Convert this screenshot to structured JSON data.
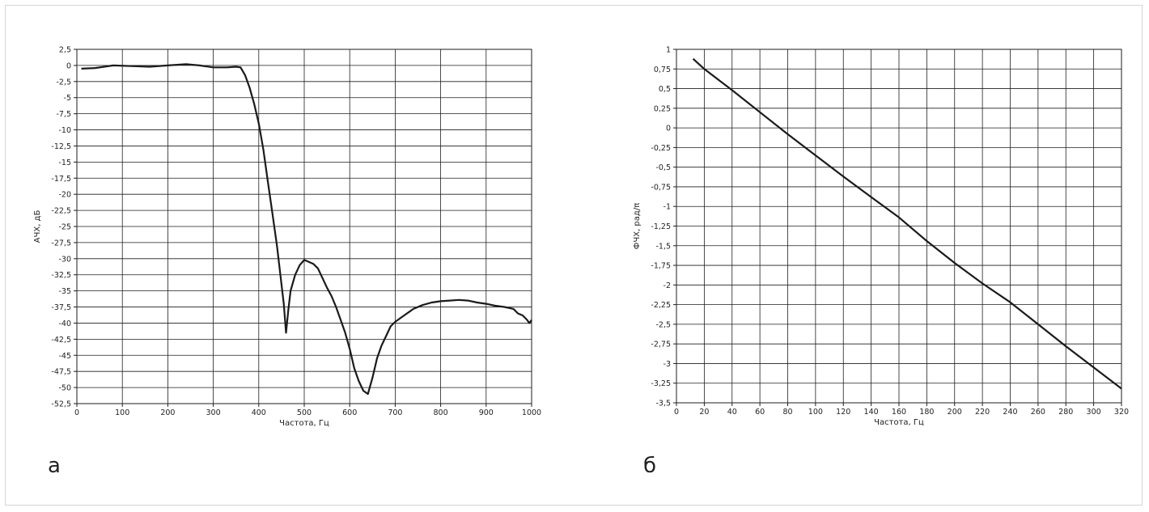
{
  "panels": [
    {
      "label": "а"
    },
    {
      "label": "б"
    }
  ],
  "chart_data": [
    {
      "type": "line",
      "title": "",
      "xlabel": "Частота, Гц",
      "ylabel": "АЧХ, дБ",
      "xlim": [
        0,
        1000
      ],
      "ylim": [
        -52.5,
        2.5
      ],
      "x_ticks": [
        0,
        100,
        200,
        300,
        400,
        500,
        600,
        700,
        800,
        900,
        1000
      ],
      "x_tick_labels": [
        "0",
        "100",
        "200",
        "300",
        "400",
        "500",
        "600",
        "700",
        "800",
        "900",
        "1000"
      ],
      "y_ticks": [
        2.5,
        0,
        -2.5,
        -5,
        -7.5,
        -10,
        -12.5,
        -15,
        -17.5,
        -20,
        -22.5,
        -25,
        -27.5,
        -30,
        -32.5,
        -35,
        -37.5,
        -40,
        -42.5,
        -45,
        -47.5,
        -50,
        -52.5
      ],
      "y_tick_labels": [
        "2,5",
        "0",
        "-2,5",
        "-5",
        "-7,5",
        "-10",
        "-12,5",
        "-15",
        "-17,5",
        "-20",
        "-22,5",
        "-25",
        "-27,5",
        "-30",
        "-32,5",
        "-35",
        "-37,5",
        "-40",
        "-42,5",
        "-45",
        "-47,5",
        "-50",
        "-52,5"
      ],
      "grid": true,
      "line_color": "#1a1a1a",
      "series": [
        {
          "x": [
            10,
            40,
            80,
            120,
            160,
            200,
            240,
            270,
            300,
            330,
            350,
            360,
            370,
            380,
            390,
            400,
            410,
            420,
            430,
            440,
            450,
            455,
            460,
            465,
            470,
            480,
            490,
            500,
            510,
            520,
            530,
            540,
            550,
            560,
            570,
            580,
            590,
            600,
            610,
            620,
            630,
            640,
            650,
            660,
            670,
            680,
            690,
            700,
            720,
            740,
            760,
            780,
            800,
            820,
            840,
            860,
            880,
            900,
            920,
            940,
            960,
            970,
            980,
            990,
            995,
            1000
          ],
          "y": [
            -0.5,
            -0.4,
            0,
            -0.1,
            -0.2,
            0,
            0.2,
            0,
            -0.3,
            -0.3,
            -0.2,
            -0.3,
            -1.5,
            -3.5,
            -6,
            -9,
            -13,
            -18,
            -23,
            -28,
            -34,
            -37,
            -41.5,
            -38,
            -35,
            -32.5,
            -31,
            -30.2,
            -30.5,
            -30.8,
            -31.5,
            -33,
            -34.5,
            -35.8,
            -37.5,
            -39.5,
            -41.5,
            -44,
            -47,
            -49,
            -50.5,
            -51,
            -48.5,
            -45.5,
            -43.5,
            -42,
            -40.5,
            -39.8,
            -38.8,
            -37.8,
            -37.2,
            -36.8,
            -36.6,
            -36.5,
            -36.4,
            -36.5,
            -36.8,
            -37.0,
            -37.3,
            -37.5,
            -37.8,
            -38.5,
            -38.8,
            -39.5,
            -40,
            -39.5
          ]
        }
      ]
    },
    {
      "type": "line",
      "title": "",
      "xlabel": "Частота, Гц",
      "ylabel": "ФЧХ, рад/π",
      "xlim": [
        0,
        320
      ],
      "ylim": [
        -3.5,
        1
      ],
      "x_ticks": [
        0,
        20,
        40,
        60,
        80,
        100,
        120,
        140,
        160,
        180,
        200,
        220,
        240,
        260,
        280,
        300,
        320
      ],
      "x_tick_labels": [
        "0",
        "20",
        "40",
        "60",
        "80",
        "100",
        "120",
        "140",
        "160",
        "180",
        "200",
        "220",
        "240",
        "260",
        "280",
        "300",
        "320"
      ],
      "y_ticks": [
        1,
        0.75,
        0.5,
        0.25,
        0,
        -0.25,
        -0.5,
        -0.75,
        -1,
        -1.25,
        -1.5,
        -1.75,
        -2,
        -2.25,
        -2.5,
        -2.75,
        -3,
        -3.25,
        -3.5
      ],
      "y_tick_labels": [
        "1",
        "0,75",
        "0,5",
        "0,25",
        "0",
        "-0,25",
        "-0,5",
        "-0,75",
        "-1",
        "-1,25",
        "-1,5",
        "-1,75",
        "-2",
        "-2,25",
        "-2,5",
        "-2,75",
        "-3",
        "-3,25",
        "-3,5"
      ],
      "grid": true,
      "line_color": "#1a1a1a",
      "series": [
        {
          "x": [
            12,
            20,
            40,
            60,
            80,
            100,
            120,
            140,
            160,
            180,
            200,
            220,
            240,
            260,
            280,
            300,
            320
          ],
          "y": [
            0.88,
            0.75,
            0.48,
            0.2,
            -0.08,
            -0.35,
            -0.62,
            -0.88,
            -1.14,
            -1.44,
            -1.72,
            -1.98,
            -2.22,
            -2.5,
            -2.78,
            -3.05,
            -3.32
          ]
        }
      ]
    }
  ]
}
